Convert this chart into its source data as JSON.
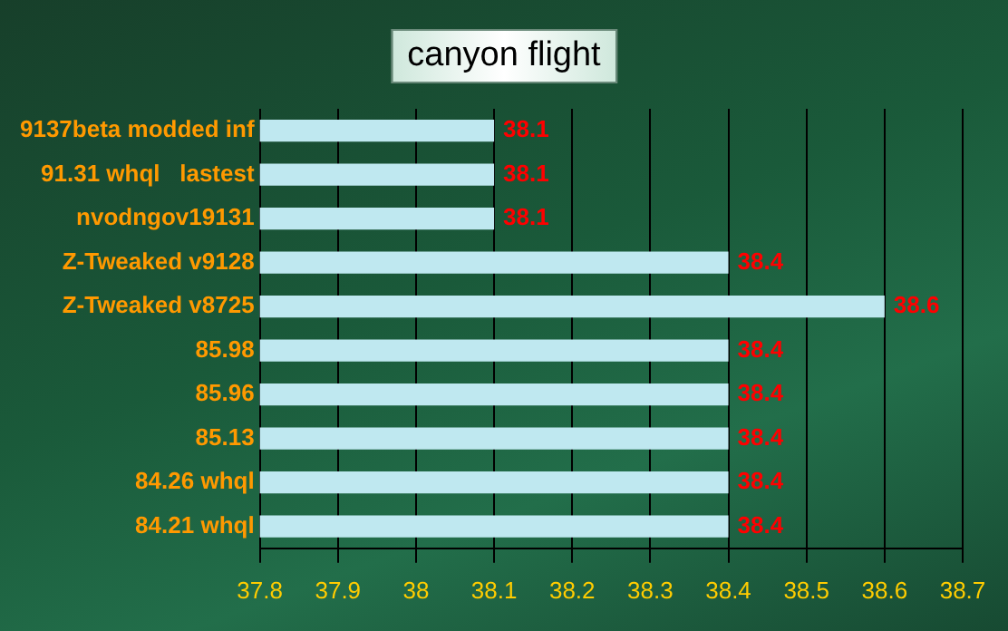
{
  "chart_data": {
    "type": "bar",
    "orientation": "horizontal",
    "title": "canyon flight",
    "categories": [
      "9137beta modded inf",
      "91.31 whql   lastest",
      "nvodngov19131",
      "Z-Tweaked v9128",
      "Z-Tweaked v8725",
      "85.98",
      "85.96",
      "85.13",
      "84.26 whql",
      "84.21 whql"
    ],
    "values": [
      38.1,
      38.1,
      38.1,
      38.4,
      38.6,
      38.4,
      38.4,
      38.4,
      38.4,
      38.4
    ],
    "color": "#bfe8f0",
    "xlim": [
      37.8,
      38.7
    ],
    "xticks": [
      37.8,
      37.9,
      38,
      38.1,
      38.2,
      38.3,
      38.4,
      38.5,
      38.6,
      38.7
    ],
    "grid": "x",
    "legend": false,
    "data_labels": true
  }
}
